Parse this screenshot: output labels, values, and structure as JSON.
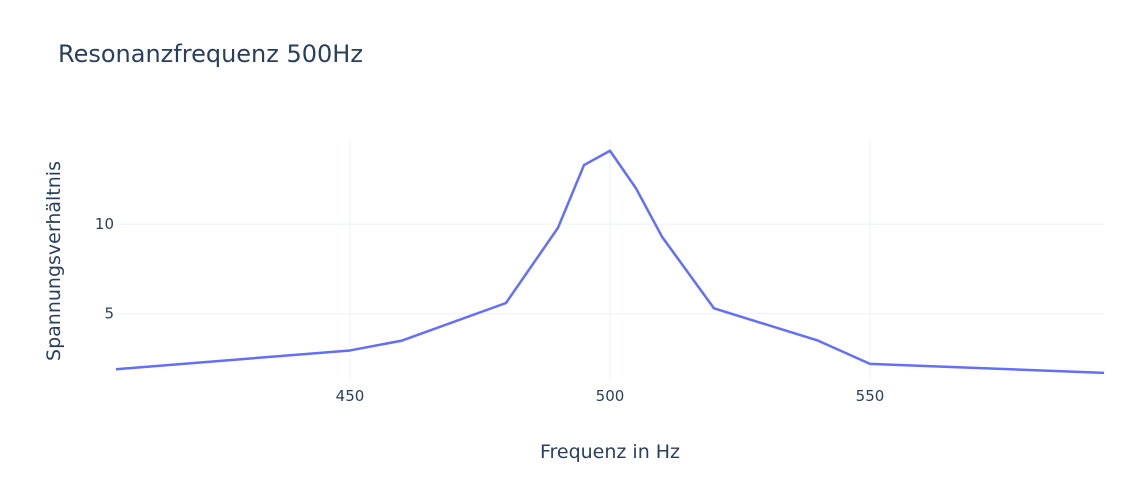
{
  "chart_data": {
    "type": "line",
    "title": "Resonanzfrequenz 500Hz",
    "xlabel": "Frequenz in Hz",
    "ylabel": "Spannungsverhältnis",
    "xlim": [
      405,
      595
    ],
    "ylim": [
      1.3,
      14.7
    ],
    "x_ticks": [
      450,
      500,
      550
    ],
    "y_ticks": [
      5,
      10
    ],
    "grid": true,
    "legend": "none",
    "series": [
      {
        "color": "#636efa",
        "x": [
          405,
          450,
          460,
          480,
          490,
          495,
          500,
          505,
          510,
          520,
          540,
          550,
          595
        ],
        "y": [
          1.9,
          2.95,
          3.5,
          5.6,
          9.8,
          13.3,
          14.1,
          12.0,
          9.3,
          5.3,
          3.5,
          2.2,
          1.7
        ]
      }
    ]
  }
}
